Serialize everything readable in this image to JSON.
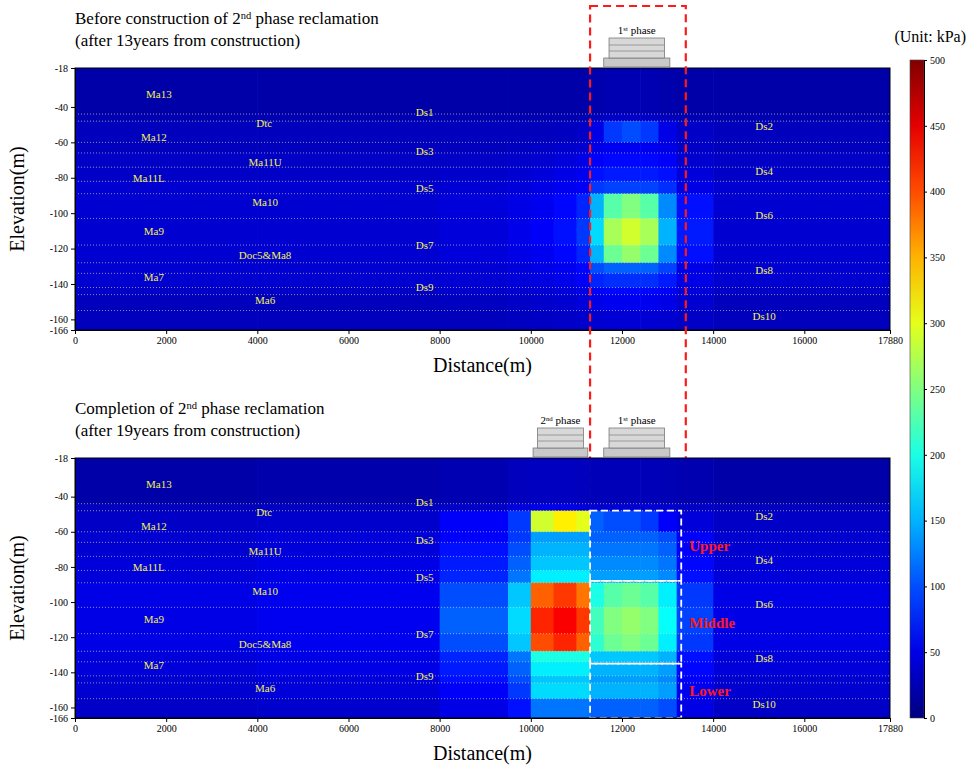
{
  "chart_data": [
    {
      "type": "heatmap",
      "title": "Before construction of 2nd phase reclamation",
      "subtitle": "(after 13years from construction)",
      "xlabel": "Distance(m)",
      "ylabel": "Elevation(m)",
      "xlim": [
        0,
        17880
      ],
      "xticks": [
        0,
        2000,
        4000,
        6000,
        8000,
        10000,
        12000,
        14000,
        16000,
        17880
      ],
      "ylim": [
        -166,
        -18
      ],
      "yticks": [
        -18,
        -40,
        -60,
        -80,
        -100,
        -120,
        -140,
        -160,
        -166
      ],
      "x_edges": [
        0,
        4000,
        8000,
        9500,
        10000,
        10500,
        11000,
        11300,
        11600,
        12000,
        12400,
        12800,
        13200,
        14000,
        17880
      ],
      "y_edges": [
        -18,
        -44,
        -48,
        -60,
        -66,
        -74,
        -82,
        -89,
        -103,
        -118,
        -128,
        -134,
        -142,
        -146,
        -155,
        -166
      ],
      "values": [
        [
          20,
          20,
          20,
          20,
          20,
          20,
          20,
          22,
          25,
          25,
          25,
          22,
          20,
          20
        ],
        [
          25,
          25,
          25,
          25,
          25,
          25,
          25,
          30,
          35,
          35,
          35,
          30,
          25,
          25
        ],
        [
          30,
          30,
          30,
          30,
          30,
          32,
          35,
          50,
          90,
          100,
          90,
          50,
          35,
          30
        ],
        [
          30,
          30,
          30,
          32,
          35,
          38,
          40,
          50,
          55,
          55,
          55,
          50,
          35,
          30
        ],
        [
          35,
          35,
          35,
          38,
          40,
          45,
          50,
          60,
          65,
          65,
          65,
          60,
          40,
          35
        ],
        [
          35,
          35,
          38,
          40,
          45,
          50,
          55,
          70,
          75,
          75,
          75,
          70,
          45,
          35
        ],
        [
          40,
          40,
          42,
          45,
          50,
          55,
          60,
          90,
          95,
          95,
          95,
          85,
          50,
          40
        ],
        [
          40,
          40,
          45,
          50,
          55,
          65,
          80,
          150,
          230,
          250,
          230,
          130,
          70,
          40
        ],
        [
          40,
          40,
          45,
          52,
          60,
          70,
          90,
          170,
          270,
          290,
          270,
          150,
          75,
          40
        ],
        [
          40,
          40,
          45,
          50,
          55,
          65,
          80,
          150,
          240,
          260,
          240,
          130,
          70,
          40
        ],
        [
          40,
          40,
          42,
          45,
          50,
          55,
          65,
          100,
          110,
          110,
          110,
          95,
          50,
          40
        ],
        [
          40,
          40,
          42,
          45,
          48,
          52,
          60,
          80,
          85,
          85,
          85,
          75,
          50,
          40
        ],
        [
          35,
          35,
          38,
          40,
          42,
          45,
          50,
          60,
          65,
          65,
          65,
          58,
          45,
          35
        ],
        [
          30,
          30,
          32,
          35,
          38,
          40,
          45,
          50,
          55,
          55,
          55,
          50,
          40,
          30
        ],
        [
          30,
          30,
          30,
          32,
          34,
          36,
          38,
          40,
          42,
          42,
          42,
          40,
          35,
          30
        ]
      ],
      "colorbar": {
        "range": [
          0,
          500
        ],
        "ticks": [
          0,
          50,
          100,
          150,
          200,
          250,
          300,
          350,
          400,
          450,
          500
        ],
        "label": "(Unit: kPa)"
      },
      "structures": [
        {
          "label": "1st phase",
          "x0": 11600,
          "x1": 13050
        }
      ],
      "highlight": {
        "x0": 11300,
        "x1": 13400
      },
      "annotations": [
        {
          "text": "Ma13",
          "x": 1840,
          "y": -33
        },
        {
          "text": "Dtc",
          "x": 4150,
          "y": -49
        },
        {
          "text": "Ds1",
          "x": 7670,
          "y": -43
        },
        {
          "text": "Ds2",
          "x": 15120,
          "y": -51
        },
        {
          "text": "Ma12",
          "x": 1730,
          "y": -57
        },
        {
          "text": "Ds3",
          "x": 7670,
          "y": -65
        },
        {
          "text": "Ma11U",
          "x": 4170,
          "y": -71
        },
        {
          "text": "Ds4",
          "x": 15120,
          "y": -76
        },
        {
          "text": "Ma11L",
          "x": 1620,
          "y": -80
        },
        {
          "text": "Ds5",
          "x": 7670,
          "y": -86
        },
        {
          "text": "Ma10",
          "x": 4170,
          "y": -94
        },
        {
          "text": "Ds6",
          "x": 15120,
          "y": -101
        },
        {
          "text": "Ma9",
          "x": 1730,
          "y": -110
        },
        {
          "text": "Ds7",
          "x": 7670,
          "y": -118
        },
        {
          "text": "Doc5&Ma8",
          "x": 4170,
          "y": -124
        },
        {
          "text": "Ds8",
          "x": 15120,
          "y": -132
        },
        {
          "text": "Ma7",
          "x": 1730,
          "y": -136
        },
        {
          "text": "Ds9",
          "x": 7670,
          "y": -142
        },
        {
          "text": "Ma6",
          "x": 4170,
          "y": -149
        },
        {
          "text": "Ds10",
          "x": 15120,
          "y": -158
        }
      ]
    },
    {
      "type": "heatmap",
      "title": "Completion of 2nd phase reclamation",
      "subtitle": "(after 19years from construction)",
      "xlabel": "Distance(m)",
      "ylabel": "Elevation(m)",
      "xlim": [
        0,
        17880
      ],
      "xticks": [
        0,
        2000,
        4000,
        6000,
        8000,
        10000,
        12000,
        14000,
        16000,
        17880
      ],
      "ylim": [
        -166,
        -18
      ],
      "yticks": [
        -18,
        -40,
        -60,
        -80,
        -100,
        -120,
        -140,
        -160,
        -166
      ],
      "x_edges": [
        0,
        4000,
        8000,
        9500,
        10000,
        10500,
        11000,
        11300,
        11600,
        12000,
        12400,
        12800,
        13200,
        14000,
        17880
      ],
      "y_edges": [
        -18,
        -44,
        -48,
        -60,
        -66,
        -74,
        -82,
        -89,
        -103,
        -118,
        -128,
        -134,
        -142,
        -146,
        -155,
        -166
      ],
      "values": [
        [
          20,
          22,
          25,
          30,
          32,
          32,
          30,
          28,
          28,
          28,
          28,
          26,
          24,
          20
        ],
        [
          30,
          32,
          35,
          45,
          50,
          50,
          45,
          40,
          40,
          40,
          40,
          38,
          34,
          30
        ],
        [
          35,
          38,
          60,
          90,
          290,
          320,
          300,
          110,
          100,
          100,
          90,
          60,
          45,
          35
        ],
        [
          40,
          45,
          60,
          90,
          140,
          140,
          140,
          110,
          110,
          110,
          110,
          100,
          60,
          40
        ],
        [
          40,
          45,
          70,
          100,
          150,
          150,
          150,
          120,
          120,
          120,
          120,
          110,
          60,
          40
        ],
        [
          45,
          50,
          75,
          110,
          160,
          160,
          160,
          130,
          130,
          130,
          130,
          120,
          65,
          45
        ],
        [
          45,
          50,
          80,
          120,
          180,
          180,
          180,
          140,
          140,
          140,
          140,
          130,
          70,
          45
        ],
        [
          50,
          55,
          100,
          160,
          390,
          410,
          380,
          200,
          230,
          240,
          230,
          180,
          90,
          50
        ],
        [
          50,
          55,
          110,
          170,
          420,
          440,
          410,
          220,
          250,
          260,
          250,
          190,
          95,
          50
        ],
        [
          50,
          55,
          100,
          160,
          400,
          420,
          390,
          210,
          240,
          250,
          240,
          180,
          90,
          50
        ],
        [
          45,
          50,
          80,
          120,
          200,
          200,
          200,
          160,
          160,
          160,
          160,
          150,
          70,
          45
        ],
        [
          45,
          50,
          75,
          110,
          180,
          180,
          180,
          150,
          150,
          150,
          150,
          140,
          65,
          45
        ],
        [
          40,
          45,
          70,
          100,
          160,
          160,
          160,
          140,
          140,
          140,
          140,
          130,
          60,
          40
        ],
        [
          40,
          45,
          60,
          90,
          170,
          170,
          170,
          150,
          150,
          150,
          150,
          140,
          55,
          40
        ],
        [
          35,
          38,
          50,
          70,
          120,
          120,
          120,
          110,
          110,
          110,
          110,
          100,
          50,
          35
        ]
      ],
      "structures": [
        {
          "label": "2nd phase",
          "x0": 10050,
          "x1": 11250
        },
        {
          "label": "1st phase",
          "x0": 11600,
          "x1": 13050
        }
      ],
      "regions": [
        {
          "label": "Upper",
          "x0": 11300,
          "x1": 13300,
          "y0": -88,
          "y1": -48
        },
        {
          "label": "Middle",
          "x0": 11300,
          "x1": 13300,
          "y0": -135,
          "y1": -88
        },
        {
          "label": "Lower",
          "x0": 11300,
          "x1": 13300,
          "y0": -166,
          "y1": -135
        }
      ],
      "annotations": [
        {
          "text": "Ma13",
          "x": 1840,
          "y": -33
        },
        {
          "text": "Dtc",
          "x": 4150,
          "y": -49
        },
        {
          "text": "Ds1",
          "x": 7670,
          "y": -43
        },
        {
          "text": "Ds2",
          "x": 15120,
          "y": -51
        },
        {
          "text": "Ma12",
          "x": 1730,
          "y": -57
        },
        {
          "text": "Ds3",
          "x": 7670,
          "y": -65
        },
        {
          "text": "Ma11U",
          "x": 4170,
          "y": -71
        },
        {
          "text": "Ds4",
          "x": 15120,
          "y": -76
        },
        {
          "text": "Ma11L",
          "x": 1620,
          "y": -80
        },
        {
          "text": "Ds5",
          "x": 7670,
          "y": -86
        },
        {
          "text": "Ma10",
          "x": 4170,
          "y": -94
        },
        {
          "text": "Ds6",
          "x": 15120,
          "y": -101
        },
        {
          "text": "Ma9",
          "x": 1730,
          "y": -110
        },
        {
          "text": "Ds7",
          "x": 7670,
          "y": -118
        },
        {
          "text": "Doc5&Ma8",
          "x": 4170,
          "y": -124
        },
        {
          "text": "Ds8",
          "x": 15120,
          "y": -132
        },
        {
          "text": "Ma7",
          "x": 1730,
          "y": -136
        },
        {
          "text": "Ds9",
          "x": 7670,
          "y": -142
        },
        {
          "text": "Ma6",
          "x": 4170,
          "y": -149
        },
        {
          "text": "Ds10",
          "x": 15120,
          "y": -158
        }
      ]
    }
  ]
}
